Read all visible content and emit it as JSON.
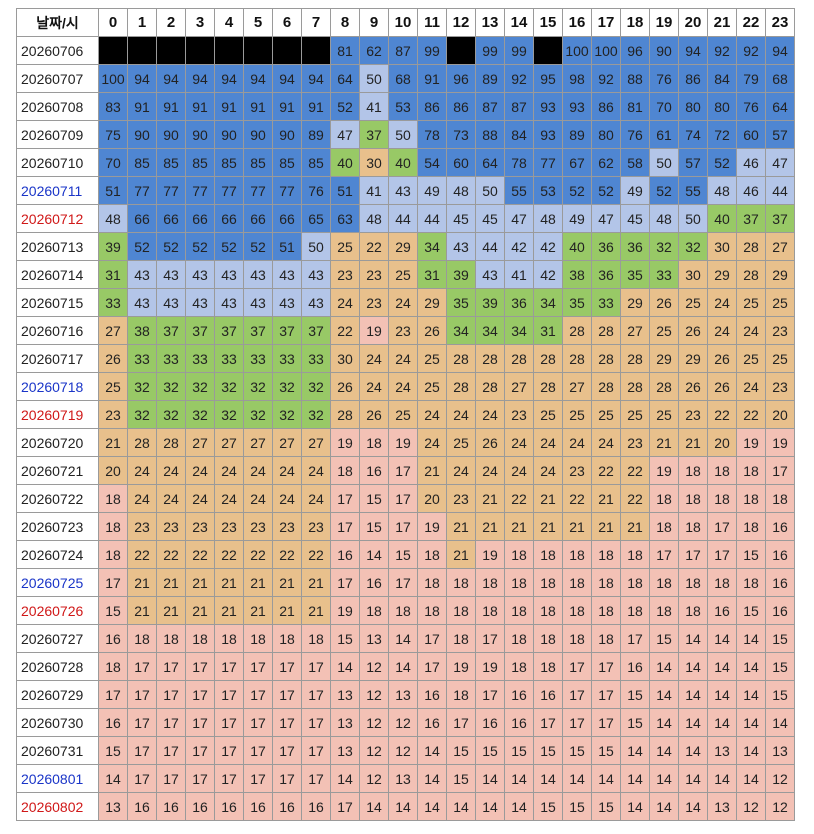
{
  "table": {
    "corner_label": "날짜/시",
    "hours": [
      "0",
      "1",
      "2",
      "3",
      "4",
      "5",
      "6",
      "7",
      "8",
      "9",
      "10",
      "11",
      "12",
      "13",
      "14",
      "15",
      "16",
      "17",
      "18",
      "19",
      "20",
      "21",
      "22",
      "23"
    ],
    "rows": [
      {
        "date": "20260706",
        "day": "",
        "values": [
          null,
          null,
          null,
          null,
          null,
          null,
          null,
          null,
          81,
          62,
          87,
          99,
          null,
          99,
          99,
          null,
          100,
          100,
          96,
          90,
          94,
          92,
          92,
          94
        ]
      },
      {
        "date": "20260707",
        "day": "",
        "values": [
          100,
          94,
          94,
          94,
          94,
          94,
          94,
          94,
          64,
          50,
          68,
          91,
          96,
          89,
          92,
          95,
          98,
          92,
          88,
          76,
          86,
          84,
          79,
          68
        ]
      },
      {
        "date": "20260708",
        "day": "",
        "values": [
          83,
          91,
          91,
          91,
          91,
          91,
          91,
          91,
          52,
          41,
          53,
          86,
          86,
          87,
          87,
          93,
          93,
          86,
          81,
          70,
          80,
          80,
          76,
          64
        ]
      },
      {
        "date": "20260709",
        "day": "",
        "values": [
          75,
          90,
          90,
          90,
          90,
          90,
          90,
          89,
          47,
          37,
          50,
          78,
          73,
          88,
          84,
          93,
          89,
          80,
          76,
          61,
          74,
          72,
          60,
          57
        ]
      },
      {
        "date": "20260710",
        "day": "",
        "values": [
          70,
          85,
          85,
          85,
          85,
          85,
          85,
          85,
          40,
          30,
          40,
          54,
          60,
          64,
          78,
          77,
          67,
          62,
          58,
          50,
          57,
          52,
          46,
          47
        ]
      },
      {
        "date": "20260711",
        "day": "sat",
        "values": [
          51,
          77,
          77,
          77,
          77,
          77,
          77,
          76,
          51,
          41,
          43,
          49,
          48,
          50,
          55,
          53,
          52,
          52,
          49,
          52,
          55,
          48,
          46,
          44
        ]
      },
      {
        "date": "20260712",
        "day": "sun",
        "values": [
          48,
          66,
          66,
          66,
          66,
          66,
          66,
          65,
          63,
          48,
          44,
          44,
          45,
          45,
          47,
          48,
          49,
          47,
          45,
          48,
          50,
          40,
          37,
          37
        ]
      },
      {
        "date": "20260713",
        "day": "",
        "values": [
          39,
          52,
          52,
          52,
          52,
          52,
          51,
          50,
          25,
          22,
          29,
          34,
          43,
          44,
          42,
          42,
          40,
          36,
          36,
          32,
          32,
          30,
          28,
          27
        ]
      },
      {
        "date": "20260714",
        "day": "",
        "values": [
          31,
          43,
          43,
          43,
          43,
          43,
          43,
          43,
          23,
          23,
          25,
          31,
          39,
          43,
          41,
          42,
          38,
          36,
          35,
          33,
          30,
          29,
          28,
          29
        ]
      },
      {
        "date": "20260715",
        "day": "",
        "values": [
          33,
          43,
          43,
          43,
          43,
          43,
          43,
          43,
          24,
          23,
          24,
          29,
          35,
          39,
          36,
          34,
          35,
          33,
          29,
          26,
          25,
          24,
          25,
          25
        ]
      },
      {
        "date": "20260716",
        "day": "",
        "values": [
          27,
          38,
          37,
          37,
          37,
          37,
          37,
          37,
          22,
          19,
          23,
          26,
          34,
          34,
          34,
          31,
          28,
          28,
          27,
          25,
          26,
          24,
          24,
          23
        ]
      },
      {
        "date": "20260717",
        "day": "",
        "values": [
          26,
          33,
          33,
          33,
          33,
          33,
          33,
          33,
          30,
          24,
          24,
          25,
          28,
          28,
          28,
          28,
          28,
          28,
          28,
          29,
          29,
          26,
          25,
          25
        ]
      },
      {
        "date": "20260718",
        "day": "sat",
        "values": [
          25,
          32,
          32,
          32,
          32,
          32,
          32,
          32,
          26,
          24,
          24,
          25,
          28,
          28,
          27,
          28,
          27,
          28,
          28,
          28,
          26,
          26,
          24,
          23
        ]
      },
      {
        "date": "20260719",
        "day": "sun",
        "values": [
          23,
          32,
          32,
          32,
          32,
          32,
          32,
          32,
          28,
          26,
          25,
          24,
          24,
          24,
          23,
          25,
          25,
          25,
          25,
          25,
          23,
          22,
          22,
          20
        ]
      },
      {
        "date": "20260720",
        "day": "",
        "values": [
          21,
          28,
          28,
          27,
          27,
          27,
          27,
          27,
          19,
          18,
          19,
          24,
          25,
          26,
          24,
          24,
          24,
          24,
          23,
          21,
          21,
          20,
          19,
          19
        ]
      },
      {
        "date": "20260721",
        "day": "",
        "values": [
          20,
          24,
          24,
          24,
          24,
          24,
          24,
          24,
          18,
          16,
          17,
          21,
          24,
          24,
          24,
          24,
          23,
          22,
          22,
          19,
          18,
          18,
          18,
          17
        ]
      },
      {
        "date": "20260722",
        "day": "",
        "values": [
          18,
          24,
          24,
          24,
          24,
          24,
          24,
          24,
          17,
          15,
          17,
          20,
          23,
          21,
          22,
          21,
          22,
          21,
          22,
          18,
          18,
          18,
          18,
          18
        ]
      },
      {
        "date": "20260723",
        "day": "",
        "values": [
          18,
          23,
          23,
          23,
          23,
          23,
          23,
          23,
          17,
          15,
          17,
          19,
          21,
          21,
          21,
          21,
          21,
          21,
          21,
          18,
          18,
          17,
          18,
          16
        ]
      },
      {
        "date": "20260724",
        "day": "",
        "values": [
          18,
          22,
          22,
          22,
          22,
          22,
          22,
          22,
          16,
          14,
          15,
          18,
          21,
          19,
          18,
          18,
          18,
          18,
          18,
          17,
          17,
          17,
          15,
          16
        ]
      },
      {
        "date": "20260725",
        "day": "sat",
        "values": [
          17,
          21,
          21,
          21,
          21,
          21,
          21,
          21,
          17,
          16,
          17,
          18,
          18,
          18,
          18,
          18,
          18,
          18,
          18,
          18,
          18,
          18,
          18,
          16
        ]
      },
      {
        "date": "20260726",
        "day": "sun",
        "values": [
          15,
          21,
          21,
          21,
          21,
          21,
          21,
          21,
          19,
          18,
          18,
          18,
          18,
          18,
          18,
          18,
          18,
          18,
          18,
          18,
          18,
          16,
          15,
          16
        ]
      },
      {
        "date": "20260727",
        "day": "",
        "values": [
          16,
          18,
          18,
          18,
          18,
          18,
          18,
          18,
          15,
          13,
          14,
          17,
          18,
          17,
          18,
          18,
          18,
          18,
          17,
          15,
          14,
          14,
          14,
          15
        ]
      },
      {
        "date": "20260728",
        "day": "",
        "values": [
          18,
          17,
          17,
          17,
          17,
          17,
          17,
          17,
          14,
          12,
          14,
          17,
          19,
          19,
          18,
          18,
          17,
          17,
          16,
          14,
          14,
          14,
          14,
          15
        ]
      },
      {
        "date": "20260729",
        "day": "",
        "values": [
          17,
          17,
          17,
          17,
          17,
          17,
          17,
          17,
          13,
          12,
          13,
          16,
          18,
          17,
          16,
          16,
          17,
          17,
          15,
          14,
          14,
          14,
          14,
          15
        ]
      },
      {
        "date": "20260730",
        "day": "",
        "values": [
          16,
          17,
          17,
          17,
          17,
          17,
          17,
          17,
          13,
          12,
          12,
          16,
          17,
          16,
          16,
          17,
          17,
          17,
          15,
          14,
          14,
          14,
          14,
          14
        ]
      },
      {
        "date": "20260731",
        "day": "",
        "values": [
          15,
          17,
          17,
          17,
          17,
          17,
          17,
          17,
          13,
          12,
          12,
          14,
          15,
          15,
          15,
          15,
          15,
          15,
          14,
          14,
          14,
          13,
          14,
          13
        ]
      },
      {
        "date": "20260801",
        "day": "sat",
        "values": [
          14,
          17,
          17,
          17,
          17,
          17,
          17,
          17,
          14,
          12,
          13,
          14,
          15,
          14,
          14,
          14,
          14,
          14,
          14,
          14,
          14,
          14,
          14,
          12
        ]
      },
      {
        "date": "20260802",
        "day": "sun",
        "values": [
          13,
          16,
          16,
          16,
          16,
          16,
          16,
          16,
          17,
          14,
          14,
          14,
          14,
          14,
          14,
          15,
          15,
          15,
          14,
          14,
          14,
          13,
          12,
          12
        ]
      }
    ]
  },
  "colors": {
    "black": "#000000",
    "blue": "#4f86d2",
    "light_blue": "#b3c5e8",
    "green": "#98c966",
    "tan": "#e8c08c",
    "pink": "#f3c1b5",
    "saturday_text": "#1a35c8",
    "sunday_text": "#d01818"
  }
}
